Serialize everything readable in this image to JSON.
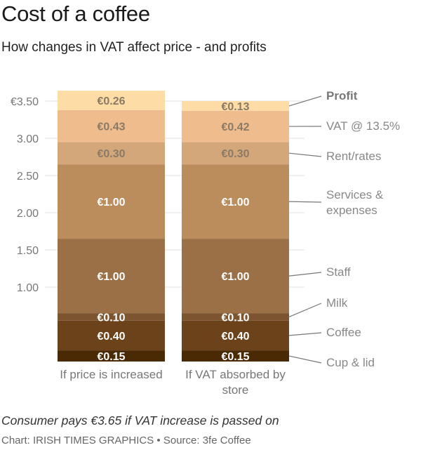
{
  "title": "Cost of a coffee",
  "subtitle": "How changes in VAT affect price - and profits",
  "note": "Consumer pays €3.65 if VAT increase is passed on",
  "source": "Chart: IRISH TIMES GRAPHICS • Source: 3fe Coffee",
  "chart_data": {
    "type": "bar",
    "stacked": true,
    "categories": [
      "If price is increased",
      "If VAT absorbed by store"
    ],
    "category_lines": [
      [
        "If price is increased"
      ],
      [
        "If VAT absorbed by",
        "store"
      ]
    ],
    "ylim": [
      0,
      3.6
    ],
    "y_ticks": [
      {
        "value": 1.0,
        "label": "1.00"
      },
      {
        "value": 1.5,
        "label": "1.50"
      },
      {
        "value": 2.0,
        "label": "2.00"
      },
      {
        "value": 2.5,
        "label": "2.50"
      },
      {
        "value": 3.0,
        "label": "3.00"
      },
      {
        "value": 3.5,
        "label": "€3.50"
      }
    ],
    "grid": true,
    "series": [
      {
        "name": "Cup & lid",
        "name_lines": [
          "Cup & lid"
        ],
        "color": "#4a2a04",
        "values": [
          0.15,
          0.15
        ],
        "labels": [
          "€0.15",
          "€0.15"
        ]
      },
      {
        "name": "Coffee",
        "name_lines": [
          "Coffee"
        ],
        "color": "#6b4219",
        "values": [
          0.4,
          0.4
        ],
        "labels": [
          "€0.40",
          "€0.40"
        ]
      },
      {
        "name": "Milk",
        "name_lines": [
          "Milk"
        ],
        "color": "#7d5430",
        "values": [
          0.1,
          0.1
        ],
        "labels": [
          "€0.10",
          "€0.10"
        ]
      },
      {
        "name": "Staff",
        "name_lines": [
          "Staff"
        ],
        "color": "#9c7046",
        "values": [
          1.0,
          1.0
        ],
        "labels": [
          "€1.00",
          "€1.00"
        ]
      },
      {
        "name": "Services & expenses",
        "name_lines": [
          "Services &",
          "expenses"
        ],
        "color": "#bb8d5d",
        "values": [
          1.0,
          1.0
        ],
        "labels": [
          "€1.00",
          "€1.00"
        ]
      },
      {
        "name": "Rent/rates",
        "name_lines": [
          "Rent/rates"
        ],
        "color": "#d4a77a",
        "values": [
          0.3,
          0.3
        ],
        "labels": [
          "€0.30",
          "€0.30"
        ]
      },
      {
        "name": "VAT @ 13.5%",
        "name_lines": [
          "VAT  @ 13.5%"
        ],
        "color": "#efbd8d",
        "values": [
          0.43,
          0.42
        ],
        "labels": [
          "€0.43",
          "€0.42"
        ]
      },
      {
        "name": "Profit",
        "name_lines": [
          "Profit"
        ],
        "color": "#fddca6",
        "values": [
          0.26,
          0.13
        ],
        "labels": [
          "€0.26",
          "€0.13"
        ],
        "emphasis": true
      }
    ]
  }
}
